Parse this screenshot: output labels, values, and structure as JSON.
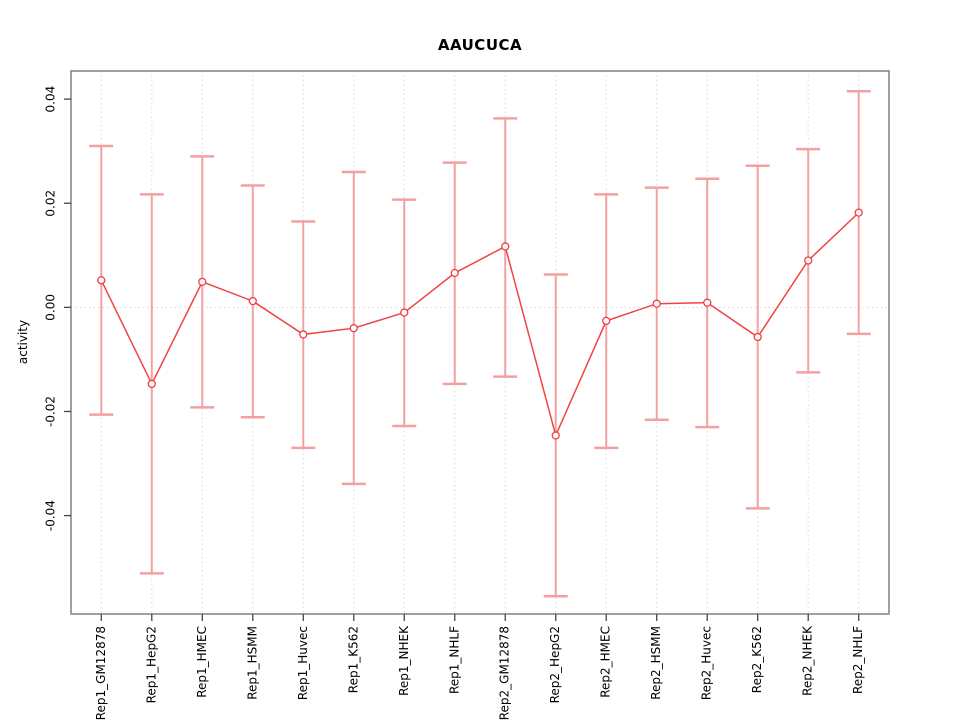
{
  "chart_data": {
    "type": "line",
    "title": "AAUCUCA",
    "ylabel": "activity",
    "xlabel": "",
    "categories": [
      "Rep1_GM12878",
      "Rep1_HepG2",
      "Rep1_HMEC",
      "Rep1_HSMM",
      "Rep1_Huvec",
      "Rep1_K562",
      "Rep1_NHEK",
      "Rep1_NHLF",
      "Rep2_GM12878",
      "Rep2_HepG2",
      "Rep2_HMEC",
      "Rep2_HSMM",
      "Rep2_Huvec",
      "Rep2_K562",
      "Rep2_NHEK",
      "Rep2_NHLF"
    ],
    "series": [
      {
        "name": "activity",
        "values": [
          0.0052,
          -0.0147,
          0.0049,
          0.0012,
          -0.0052,
          -0.004,
          -0.001,
          0.0066,
          0.0117,
          -0.0246,
          -0.0026,
          0.0007,
          0.0009,
          -0.0057,
          0.009,
          0.0182
        ],
        "upper": [
          0.031,
          0.0217,
          0.029,
          0.0234,
          0.0165,
          0.026,
          0.0207,
          0.0278,
          0.0363,
          0.0063,
          0.0217,
          0.023,
          0.0247,
          0.0272,
          0.0304,
          0.0415
        ],
        "lower": [
          -0.0206,
          -0.0511,
          -0.0192,
          -0.0211,
          -0.027,
          -0.0339,
          -0.0228,
          -0.0147,
          -0.0133,
          -0.0555,
          -0.027,
          -0.0216,
          -0.023,
          -0.0386,
          -0.0125,
          -0.0051
        ]
      }
    ],
    "ylim": [
      -0.0589,
      0.0454
    ],
    "yticks": [
      -0.04,
      -0.02,
      0.0,
      0.02,
      0.04
    ],
    "ytick_labels": [
      "-0.04",
      "-0.02",
      "0.00",
      "0.02",
      "0.04"
    ],
    "xlim": [
      0.4,
      16.6
    ],
    "grid": "vertical dotted line at each category; horizontal dotted reference line at y = 0",
    "legend_position": "none",
    "marker": "open-circle",
    "error_bars": "symmetric with caps",
    "colors": {
      "line": "#f04343",
      "point_stroke": "#ee3f3f",
      "error_bar": "#f5a0a0",
      "grid": "#d9d9d9",
      "zero_line": "#dcd3d3",
      "frame": "#888888",
      "tick": "#444444",
      "text": "#000000",
      "background": "#ffffff"
    }
  }
}
